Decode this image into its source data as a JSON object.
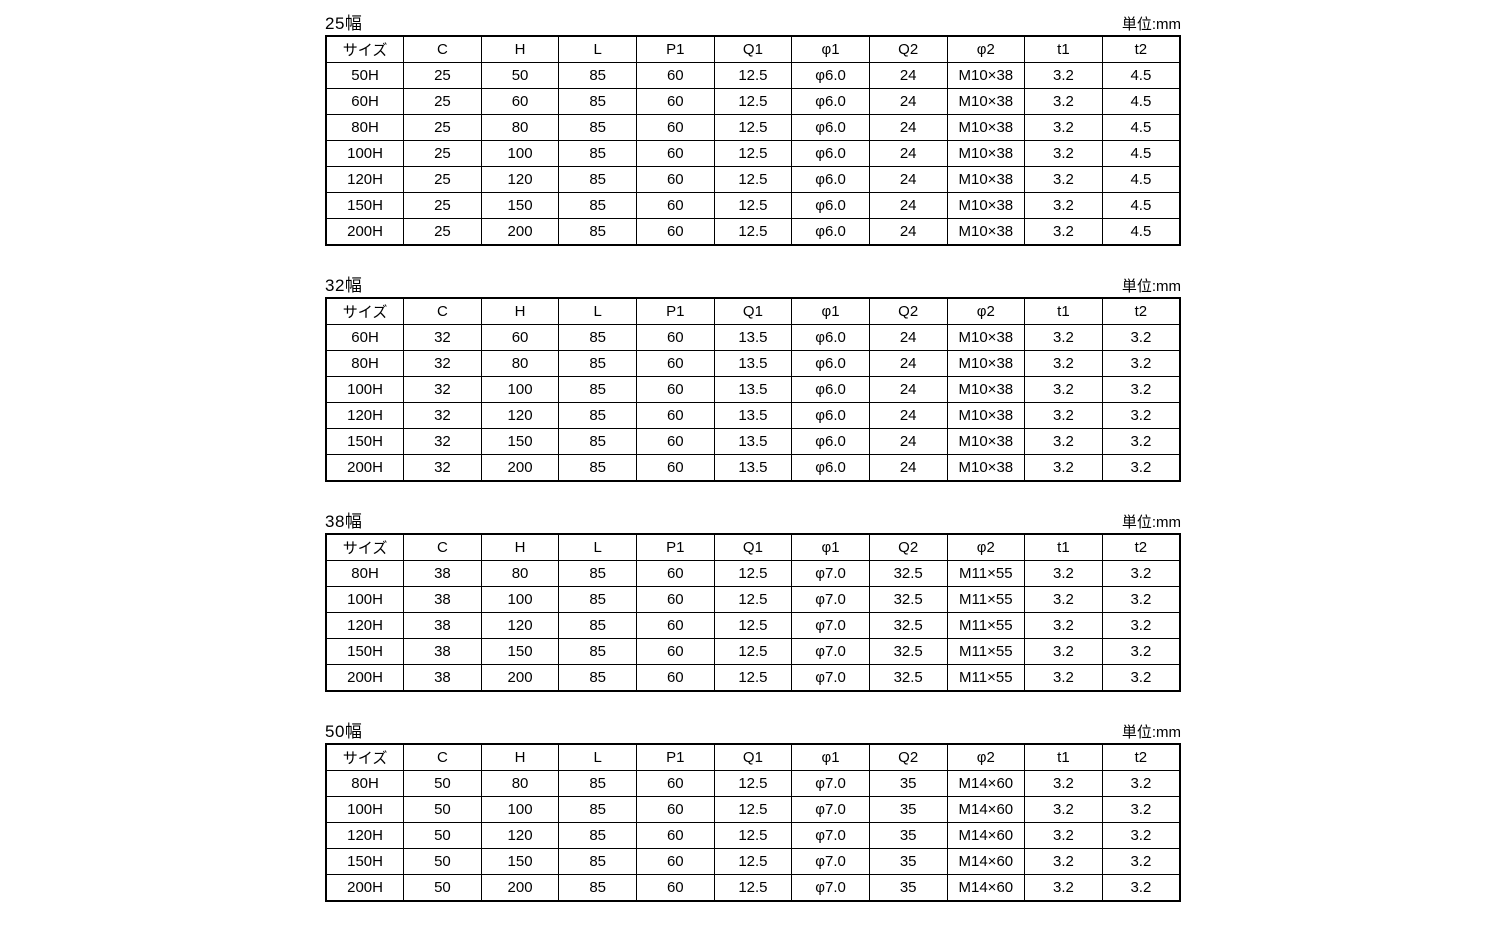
{
  "unit_label": "単位:mm",
  "columns": [
    "サイズ",
    "C",
    "H",
    "L",
    "P1",
    "Q1",
    "φ1",
    "Q2",
    "φ2",
    "t1",
    "t2"
  ],
  "colors": {
    "text": "#000000",
    "border": "#000000",
    "background": "#ffffff"
  },
  "tables": [
    {
      "title": "25幅",
      "rows": [
        [
          "50H",
          "25",
          "50",
          "85",
          "60",
          "12.5",
          "φ6.0",
          "24",
          "M10×38",
          "3.2",
          "4.5"
        ],
        [
          "60H",
          "25",
          "60",
          "85",
          "60",
          "12.5",
          "φ6.0",
          "24",
          "M10×38",
          "3.2",
          "4.5"
        ],
        [
          "80H",
          "25",
          "80",
          "85",
          "60",
          "12.5",
          "φ6.0",
          "24",
          "M10×38",
          "3.2",
          "4.5"
        ],
        [
          "100H",
          "25",
          "100",
          "85",
          "60",
          "12.5",
          "φ6.0",
          "24",
          "M10×38",
          "3.2",
          "4.5"
        ],
        [
          "120H",
          "25",
          "120",
          "85",
          "60",
          "12.5",
          "φ6.0",
          "24",
          "M10×38",
          "3.2",
          "4.5"
        ],
        [
          "150H",
          "25",
          "150",
          "85",
          "60",
          "12.5",
          "φ6.0",
          "24",
          "M10×38",
          "3.2",
          "4.5"
        ],
        [
          "200H",
          "25",
          "200",
          "85",
          "60",
          "12.5",
          "φ6.0",
          "24",
          "M10×38",
          "3.2",
          "4.5"
        ]
      ]
    },
    {
      "title": "32幅",
      "rows": [
        [
          "60H",
          "32",
          "60",
          "85",
          "60",
          "13.5",
          "φ6.0",
          "24",
          "M10×38",
          "3.2",
          "3.2"
        ],
        [
          "80H",
          "32",
          "80",
          "85",
          "60",
          "13.5",
          "φ6.0",
          "24",
          "M10×38",
          "3.2",
          "3.2"
        ],
        [
          "100H",
          "32",
          "100",
          "85",
          "60",
          "13.5",
          "φ6.0",
          "24",
          "M10×38",
          "3.2",
          "3.2"
        ],
        [
          "120H",
          "32",
          "120",
          "85",
          "60",
          "13.5",
          "φ6.0",
          "24",
          "M10×38",
          "3.2",
          "3.2"
        ],
        [
          "150H",
          "32",
          "150",
          "85",
          "60",
          "13.5",
          "φ6.0",
          "24",
          "M10×38",
          "3.2",
          "3.2"
        ],
        [
          "200H",
          "32",
          "200",
          "85",
          "60",
          "13.5",
          "φ6.0",
          "24",
          "M10×38",
          "3.2",
          "3.2"
        ]
      ]
    },
    {
      "title": "38幅",
      "rows": [
        [
          "80H",
          "38",
          "80",
          "85",
          "60",
          "12.5",
          "φ7.0",
          "32.5",
          "M11×55",
          "3.2",
          "3.2"
        ],
        [
          "100H",
          "38",
          "100",
          "85",
          "60",
          "12.5",
          "φ7.0",
          "32.5",
          "M11×55",
          "3.2",
          "3.2"
        ],
        [
          "120H",
          "38",
          "120",
          "85",
          "60",
          "12.5",
          "φ7.0",
          "32.5",
          "M11×55",
          "3.2",
          "3.2"
        ],
        [
          "150H",
          "38",
          "150",
          "85",
          "60",
          "12.5",
          "φ7.0",
          "32.5",
          "M11×55",
          "3.2",
          "3.2"
        ],
        [
          "200H",
          "38",
          "200",
          "85",
          "60",
          "12.5",
          "φ7.0",
          "32.5",
          "M11×55",
          "3.2",
          "3.2"
        ]
      ]
    },
    {
      "title": "50幅",
      "rows": [
        [
          "80H",
          "50",
          "80",
          "85",
          "60",
          "12.5",
          "φ7.0",
          "35",
          "M14×60",
          "3.2",
          "3.2"
        ],
        [
          "100H",
          "50",
          "100",
          "85",
          "60",
          "12.5",
          "φ7.0",
          "35",
          "M14×60",
          "3.2",
          "3.2"
        ],
        [
          "120H",
          "50",
          "120",
          "85",
          "60",
          "12.5",
          "φ7.0",
          "35",
          "M14×60",
          "3.2",
          "3.2"
        ],
        [
          "150H",
          "50",
          "150",
          "85",
          "60",
          "12.5",
          "φ7.0",
          "35",
          "M14×60",
          "3.2",
          "3.2"
        ],
        [
          "200H",
          "50",
          "200",
          "85",
          "60",
          "12.5",
          "φ7.0",
          "35",
          "M14×60",
          "3.2",
          "3.2"
        ]
      ]
    }
  ]
}
